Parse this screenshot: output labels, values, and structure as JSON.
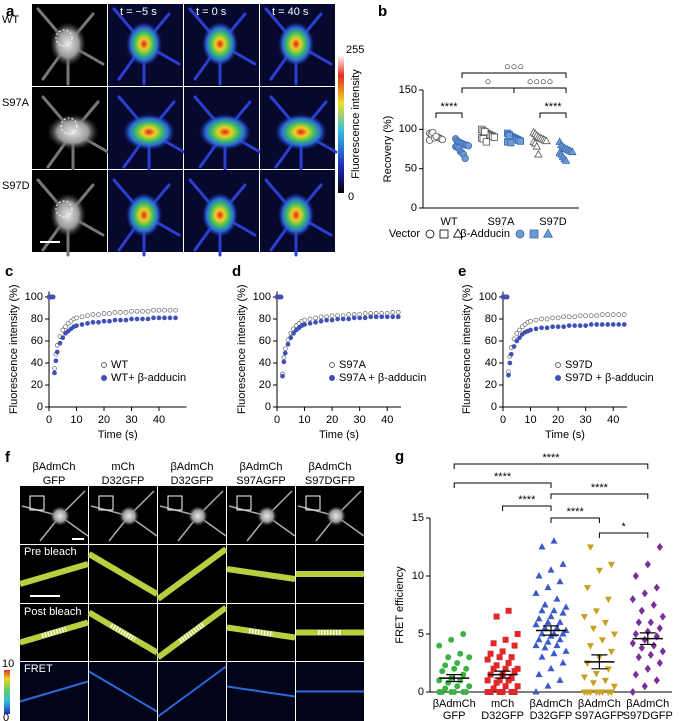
{
  "panel_a": {
    "label": "a",
    "row_labels": [
      "WT",
      "S97A",
      "S97D"
    ],
    "column_labels": [
      "t = −5 s",
      "t = 0 s",
      "t = 40 s"
    ],
    "colorbar": {
      "max": 255,
      "min": 0,
      "title": "Fluorescence intensity"
    }
  },
  "panel_f": {
    "label": "f",
    "headers": [
      {
        "top": "βAdmCh",
        "bottom": "GFP"
      },
      {
        "top": "mCh",
        "bottom": "D32GFP"
      },
      {
        "top": "βAdmCh",
        "bottom": "D32GFP"
      },
      {
        "top": "βAdmCh",
        "bottom": "S97AGFP"
      },
      {
        "top": "βAdmCh",
        "bottom": "S97DGFP"
      }
    ],
    "header_colors": [
      "#e0282a",
      "#3a9a3a"
    ],
    "row_labels": [
      "Pre bleach",
      "Post bleach",
      "FRET"
    ],
    "colorbar": {
      "max": 10,
      "min": 0
    }
  },
  "chart_data": [
    {
      "type": "strip",
      "panel_label": "b",
      "ylabel": "Recovery (%)",
      "categories": [
        "WT",
        "S97A",
        "S97D"
      ],
      "ylim": [
        0,
        150
      ],
      "yticks": [
        0,
        50,
        100,
        150
      ],
      "markers": [
        "circle",
        "square",
        "triangle"
      ],
      "annotations": [
        "****",
        "○○○",
        "○",
        "○○○○",
        "****"
      ],
      "annotation_color": "#a0602a",
      "series": [
        {
          "name": "Vector",
          "color": "#555555",
          "filled": false,
          "values": [
            [
              95,
              93,
              92,
              91,
              90,
              90,
              89,
              88,
              87,
              86,
              94,
              96,
              89,
              91
            ],
            [
              100,
              98,
              96,
              95,
              94,
              93,
              92,
              91,
              90,
              89,
              88,
              97,
              84
            ],
            [
              96,
              94,
              92,
              90,
              89,
              88,
              87,
              86,
              85,
              84,
              82,
              78,
              68
            ]
          ]
        },
        {
          "name": "β-Adducin",
          "color": "#6c9bd6",
          "filled": true,
          "values": [
            [
              88,
              85,
              84,
              83,
              82,
              81,
              80,
              80,
              79,
              78,
              77,
              76,
              72,
              70,
              68,
              63
            ],
            [
              95,
              93,
              91,
              90,
              89,
              88,
              87,
              86,
              85,
              84,
              92,
              83
            ],
            [
              84,
              80,
              78,
              76,
              75,
              74,
              73,
              72,
              71,
              70,
              68,
              65,
              62,
              60
            ]
          ]
        }
      ]
    },
    {
      "type": "line-scatter",
      "panel_label": "c",
      "xlabel": "Time (s)",
      "ylabel": "Fluorescence intensity (%)",
      "x": [
        0,
        0.5,
        1,
        1.5,
        2,
        2.5,
        3,
        4,
        5,
        6,
        7,
        8,
        9,
        10,
        12,
        14,
        16,
        18,
        20,
        22,
        24,
        26,
        28,
        30,
        32,
        34,
        36,
        38,
        40,
        42,
        44,
        46
      ],
      "xlim": [
        0,
        50
      ],
      "xticks": [
        0,
        10,
        20,
        30,
        40
      ],
      "ylim": [
        0,
        105
      ],
      "yticks": [
        0,
        20,
        40,
        60,
        80,
        100
      ],
      "series": [
        {
          "name": "WT",
          "color": "#666666",
          "filled": false,
          "values": [
            100,
            100,
            100,
            100,
            35,
            48,
            56,
            64,
            70,
            73,
            76,
            78,
            80,
            81,
            82,
            83,
            84,
            84,
            85,
            85,
            86,
            86,
            86,
            87,
            87,
            87,
            87,
            88,
            88,
            88,
            88,
            88
          ]
        },
        {
          "name": "WT+ β-adducin",
          "color": "#3f51b5",
          "filled": true,
          "values": [
            100,
            100,
            100,
            100,
            31,
            42,
            50,
            58,
            63,
            67,
            69,
            71,
            73,
            74,
            75,
            76,
            77,
            77,
            78,
            78,
            79,
            79,
            79,
            80,
            80,
            80,
            80,
            81,
            81,
            81,
            81,
            81
          ]
        }
      ]
    },
    {
      "type": "line-scatter",
      "panel_label": "d",
      "xlabel": "Time (s)",
      "ylabel": "Fluorescence intensity (%)",
      "x": [
        0,
        0.5,
        1,
        1.5,
        2,
        2.5,
        3,
        4,
        5,
        6,
        7,
        8,
        9,
        10,
        12,
        14,
        16,
        18,
        20,
        22,
        24,
        26,
        28,
        30,
        32,
        34,
        36,
        38,
        40,
        42,
        44
      ],
      "xlim": [
        0,
        45
      ],
      "xticks": [
        0,
        10,
        20,
        30,
        40
      ],
      "ylim": [
        0,
        105
      ],
      "yticks": [
        0,
        20,
        40,
        60,
        80,
        100
      ],
      "series": [
        {
          "name": "S97A",
          "color": "#666666",
          "filled": false,
          "values": [
            100,
            100,
            100,
            100,
            30,
            45,
            53,
            61,
            67,
            71,
            74,
            76,
            78,
            79,
            80,
            81,
            82,
            82,
            83,
            83,
            83,
            84,
            84,
            84,
            85,
            85,
            85,
            85,
            85,
            86,
            86
          ]
        },
        {
          "name": "S97A + β-adducin",
          "color": "#3f51b5",
          "filled": true,
          "values": [
            100,
            100,
            100,
            100,
            28,
            41,
            49,
            57,
            63,
            67,
            70,
            72,
            74,
            75,
            76,
            77,
            78,
            79,
            79,
            80,
            80,
            80,
            81,
            81,
            81,
            82,
            82,
            82,
            82,
            82,
            82
          ]
        }
      ]
    },
    {
      "type": "line-scatter",
      "panel_label": "e",
      "xlabel": "Time (s)",
      "ylabel": "Fluorescence intensity (%)",
      "x": [
        0,
        0.5,
        1,
        1.5,
        2,
        2.5,
        3,
        4,
        5,
        6,
        7,
        8,
        9,
        10,
        12,
        14,
        16,
        18,
        20,
        22,
        24,
        26,
        28,
        30,
        32,
        34,
        36,
        38,
        40,
        42,
        44
      ],
      "xlim": [
        0,
        45
      ],
      "xticks": [
        0,
        10,
        20,
        30,
        40
      ],
      "ylim": [
        0,
        105
      ],
      "yticks": [
        0,
        20,
        40,
        60,
        80,
        100
      ],
      "series": [
        {
          "name": "S97D",
          "color": "#666666",
          "filled": false,
          "values": [
            100,
            100,
            100,
            100,
            32,
            46,
            54,
            62,
            67,
            70,
            73,
            75,
            77,
            78,
            79,
            80,
            80,
            81,
            81,
            82,
            82,
            82,
            83,
            83,
            83,
            83,
            84,
            84,
            84,
            84,
            84
          ]
        },
        {
          "name": "S97D + β-adducin",
          "color": "#3f51b5",
          "filled": true,
          "values": [
            100,
            100,
            100,
            100,
            29,
            40,
            48,
            55,
            60,
            63,
            66,
            68,
            69,
            70,
            71,
            72,
            72,
            73,
            73,
            73,
            74,
            74,
            74,
            74,
            75,
            75,
            75,
            75,
            75,
            75,
            75
          ]
        }
      ]
    },
    {
      "type": "dot-mean",
      "panel_label": "g",
      "ylabel": "FRET efficiency",
      "categories": [
        [
          "βAdmCh",
          "GFP"
        ],
        [
          "mCh",
          "D32GFP"
        ],
        [
          "βAdmCh",
          "D32GFP"
        ],
        [
          "βAdmCh",
          "S97AGFP"
        ],
        [
          "βAdmCh",
          "S97DGFP"
        ]
      ],
      "ylim": [
        0,
        15
      ],
      "yticks": [
        0,
        5,
        10,
        15
      ],
      "colors": [
        "#3cb043",
        "#e0282a",
        "#3a5bc7",
        "#c8a020",
        "#7b2f9b"
      ],
      "markers": [
        "circle",
        "square",
        "triangle",
        "triangle-down",
        "diamond"
      ],
      "values": [
        [
          0,
          0,
          0,
          0,
          0,
          0,
          0.3,
          0.5,
          0.5,
          0.8,
          1,
          1,
          1.2,
          1.5,
          1.8,
          2,
          2,
          2.3,
          2.5,
          3,
          3,
          3.3,
          4,
          4.5,
          5
        ],
        [
          0,
          0,
          0,
          0,
          0,
          0,
          0.3,
          0.5,
          0.5,
          0.8,
          1,
          1,
          1,
          1.2,
          1.5,
          1.5,
          1.8,
          2,
          2,
          2,
          2.3,
          2.5,
          2.8,
          3,
          3,
          3.3,
          3.5,
          4,
          4.2,
          4.5,
          5,
          6.5,
          7
        ],
        [
          0,
          0.5,
          1,
          1.5,
          2,
          2.5,
          3,
          3.3,
          3.5,
          3.8,
          4,
          4,
          4.3,
          4.5,
          4.5,
          4.8,
          5,
          5,
          5,
          5.3,
          5.5,
          5.5,
          5.8,
          6,
          6,
          6.3,
          6.5,
          6.8,
          7,
          7,
          7.3,
          7.5,
          8,
          8.5,
          9,
          9.5,
          10,
          10.5,
          11,
          12.5,
          13
        ],
        [
          0,
          0,
          0,
          0,
          0,
          0,
          0,
          0,
          0.5,
          0.8,
          1,
          1.3,
          1.6,
          2,
          2.5,
          3,
          3.5,
          4,
          4.5,
          5,
          5.5,
          6,
          6.5,
          7,
          8,
          9,
          10.5,
          11,
          12.5
        ],
        [
          0,
          0.5,
          1,
          1.5,
          2,
          2.5,
          3,
          3.2,
          3.5,
          3.8,
          4,
          4.2,
          4.5,
          4.8,
          5,
          5.2,
          5.5,
          6,
          6,
          6.5,
          7,
          7.5,
          8,
          8.5,
          9,
          10,
          11,
          12.5
        ]
      ],
      "means": [
        1.2,
        1.5,
        5.3,
        2.6,
        4.6
      ],
      "sems": [
        0.3,
        0.3,
        0.4,
        0.6,
        0.5
      ],
      "annotations": [
        "****",
        "****",
        "****",
        "****",
        "****",
        "*"
      ]
    }
  ]
}
